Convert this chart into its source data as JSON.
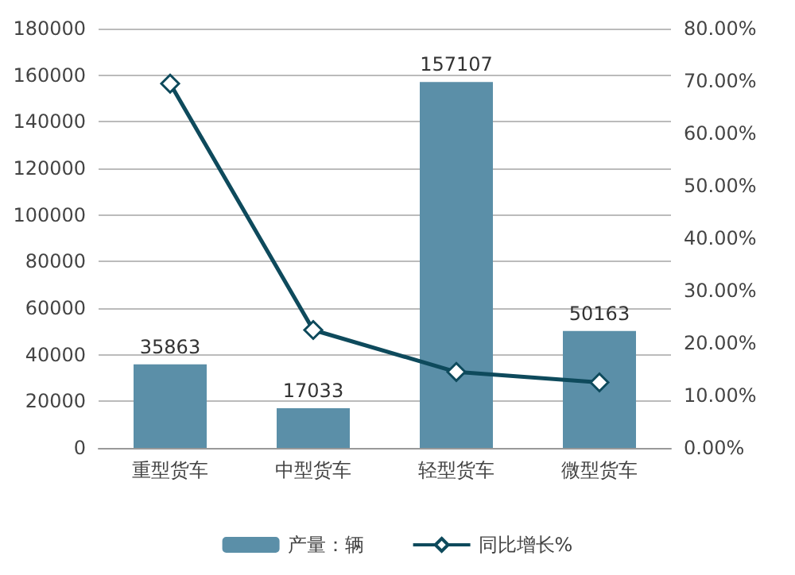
{
  "chart_data": {
    "type": "bar",
    "categories": [
      "重型货车",
      "中型货车",
      "轻型货车",
      "微型货车"
    ],
    "series": [
      {
        "name": "产量：辆",
        "color": "#5b8fa8",
        "values": [
          35863,
          17033,
          157107,
          50163
        ],
        "value_labels": [
          "35863",
          "17033",
          "157107",
          "50163"
        ]
      },
      {
        "name": "同比增长%",
        "type": "line",
        "axis": "y2",
        "color": "#0e4a5c",
        "values": [
          69.5,
          22.5,
          14.5,
          12.5
        ],
        "marker": "diamond"
      }
    ],
    "ylim": [
      0,
      180000
    ],
    "yticks": [
      0,
      20000,
      40000,
      60000,
      80000,
      100000,
      120000,
      140000,
      160000,
      180000
    ],
    "y2lim": [
      0,
      80
    ],
    "y2ticks": [
      {
        "value": 0,
        "label": "0.00%"
      },
      {
        "value": 10,
        "label": "10.00%"
      },
      {
        "value": 20,
        "label": "20.00%"
      },
      {
        "value": 30,
        "label": "30.00%"
      },
      {
        "value": 40,
        "label": "40.00%"
      },
      {
        "value": 50,
        "label": "50.00%"
      },
      {
        "value": 60,
        "label": "60.00%"
      },
      {
        "value": 70,
        "label": "70.00%"
      },
      {
        "value": 80,
        "label": "80.00%"
      }
    ],
    "grid": "y",
    "legend": "bottom"
  }
}
